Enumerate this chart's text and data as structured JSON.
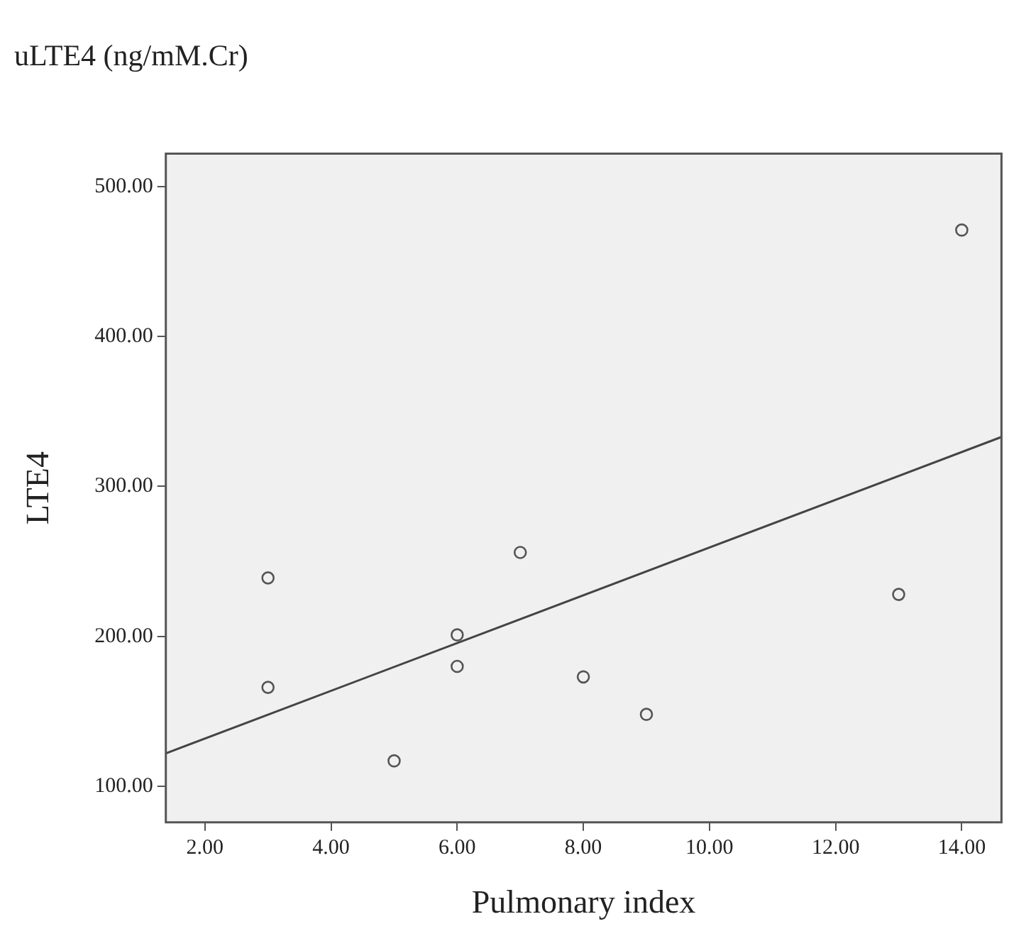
{
  "chart_data": {
    "type": "scatter",
    "title": "uLTE4 (ng/mM.Cr)",
    "xlabel": "Pulmonary index",
    "ylabel": "LTE4",
    "x": [
      3,
      3,
      5,
      6,
      6,
      7,
      8,
      9,
      13,
      14
    ],
    "series": [
      {
        "color": "#555555",
        "values": [
          239,
          166,
          117,
          201,
          180,
          256,
          173,
          148,
          228,
          471
        ]
      },
      {
        "type": "line",
        "marker": "none",
        "color": "#444444",
        "x": [
          1.38,
          14.63
        ],
        "values": [
          122,
          333
        ]
      }
    ],
    "xlim": [
      1.38,
      14.63
    ],
    "xticks": [
      {
        "value": 2,
        "label": "2.00"
      },
      {
        "value": 4,
        "label": "4.00"
      },
      {
        "value": 6,
        "label": "6.00"
      },
      {
        "value": 8,
        "label": "8.00"
      },
      {
        "value": 10,
        "label": "10.00"
      },
      {
        "value": 12,
        "label": "12.00"
      },
      {
        "value": 14,
        "label": "14.00"
      }
    ],
    "ylim": [
      76,
      522
    ],
    "yticks": [
      {
        "value": 100,
        "label": "100.00"
      },
      {
        "value": 200,
        "label": "200.00"
      },
      {
        "value": 300,
        "label": "300.00"
      },
      {
        "value": 400,
        "label": "400.00"
      },
      {
        "value": 500,
        "label": "500.00"
      }
    ],
    "legend": false,
    "marker": "circle"
  }
}
